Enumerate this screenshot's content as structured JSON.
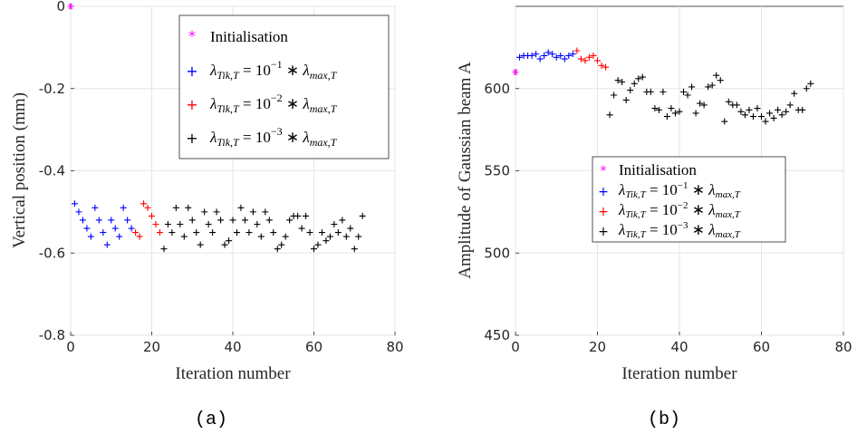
{
  "chart_data": [
    {
      "type": "scatter",
      "xlabel": "Iteration number",
      "ylabel": "Vertical position (mm)",
      "xlim": [
        0,
        80
      ],
      "ylim": [
        -0.8,
        0
      ],
      "xticks": [
        "0",
        "20",
        "40",
        "60",
        "80"
      ],
      "yticks": [
        "0",
        "-0.2",
        "-0.4",
        "-0.6",
        "-0.8"
      ],
      "caption": "(a)",
      "grid": true,
      "legend_position": "top-right",
      "series": [
        {
          "name": "Initialisation",
          "color": "#ff00ff",
          "marker": "asterisk",
          "points": [
            [
              0,
              0
            ]
          ]
        },
        {
          "name": "λTik,T = 10^-1 * λmax,T",
          "color": "#0000ff",
          "marker": "plus",
          "points": [
            [
              1,
              -0.48
            ],
            [
              2,
              -0.5
            ],
            [
              3,
              -0.52
            ],
            [
              4,
              -0.54
            ],
            [
              5,
              -0.56
            ],
            [
              6,
              -0.49
            ],
            [
              7,
              -0.52
            ],
            [
              8,
              -0.55
            ],
            [
              9,
              -0.58
            ],
            [
              10,
              -0.52
            ],
            [
              11,
              -0.54
            ],
            [
              12,
              -0.56
            ],
            [
              13,
              -0.49
            ],
            [
              14,
              -0.52
            ],
            [
              15,
              -0.54
            ]
          ]
        },
        {
          "name": "λTik,T = 10^-2 * λmax,T",
          "color": "#ff0000",
          "marker": "plus",
          "points": [
            [
              16,
              -0.55
            ],
            [
              17,
              -0.56
            ],
            [
              18,
              -0.48
            ],
            [
              19,
              -0.49
            ],
            [
              20,
              -0.51
            ],
            [
              21,
              -0.53
            ],
            [
              22,
              -0.55
            ]
          ]
        },
        {
          "name": "λTik,T = 10^-3 * λmax,T",
          "color": "#000000",
          "marker": "plus",
          "points": [
            [
              23,
              -0.59
            ],
            [
              24,
              -0.53
            ],
            [
              25,
              -0.55
            ],
            [
              26,
              -0.49
            ],
            [
              27,
              -0.53
            ],
            [
              28,
              -0.56
            ],
            [
              29,
              -0.49
            ],
            [
              30,
              -0.52
            ],
            [
              31,
              -0.55
            ],
            [
              32,
              -0.58
            ],
            [
              33,
              -0.5
            ],
            [
              34,
              -0.53
            ],
            [
              35,
              -0.55
            ],
            [
              36,
              -0.5
            ],
            [
              37,
              -0.52
            ],
            [
              38,
              -0.58
            ],
            [
              39,
              -0.57
            ],
            [
              40,
              -0.52
            ],
            [
              41,
              -0.55
            ],
            [
              42,
              -0.49
            ],
            [
              43,
              -0.52
            ],
            [
              44,
              -0.55
            ],
            [
              45,
              -0.5
            ],
            [
              46,
              -0.53
            ],
            [
              47,
              -0.56
            ],
            [
              48,
              -0.5
            ],
            [
              49,
              -0.52
            ],
            [
              50,
              -0.55
            ],
            [
              51,
              -0.59
            ],
            [
              52,
              -0.58
            ],
            [
              53,
              -0.56
            ],
            [
              54,
              -0.52
            ],
            [
              55,
              -0.51
            ],
            [
              56,
              -0.51
            ],
            [
              57,
              -0.54
            ],
            [
              58,
              -0.51
            ],
            [
              59,
              -0.55
            ],
            [
              60,
              -0.59
            ],
            [
              61,
              -0.58
            ],
            [
              62,
              -0.55
            ],
            [
              63,
              -0.57
            ],
            [
              64,
              -0.56
            ],
            [
              65,
              -0.53
            ],
            [
              66,
              -0.55
            ],
            [
              67,
              -0.52
            ],
            [
              68,
              -0.56
            ],
            [
              69,
              -0.54
            ],
            [
              70,
              -0.59
            ],
            [
              71,
              -0.56
            ],
            [
              72,
              -0.51
            ]
          ]
        }
      ]
    },
    {
      "type": "scatter",
      "xlabel": "Iteration number",
      "ylabel": "Amplitude of Gaussian beam A",
      "xlim": [
        0,
        80
      ],
      "ylim": [
        450,
        650
      ],
      "xticks": [
        "0",
        "20",
        "40",
        "60",
        "80"
      ],
      "yticks": [
        "450",
        "500",
        "550",
        "600"
      ],
      "caption": "(b)",
      "grid": true,
      "legend_position": "center",
      "series": [
        {
          "name": "Initialisation",
          "color": "#ff00ff",
          "marker": "asterisk",
          "points": [
            [
              0,
              610
            ]
          ]
        },
        {
          "name": "λTik,T = 10^-1 * λmax,T",
          "color": "#0000ff",
          "marker": "plus",
          "points": [
            [
              1,
              619
            ],
            [
              2,
              620
            ],
            [
              3,
              620
            ],
            [
              4,
              620
            ],
            [
              5,
              621
            ],
            [
              6,
              618
            ],
            [
              7,
              620
            ],
            [
              8,
              622
            ],
            [
              9,
              621
            ],
            [
              10,
              619
            ],
            [
              11,
              620
            ],
            [
              12,
              618
            ],
            [
              13,
              620
            ],
            [
              14,
              621
            ]
          ]
        },
        {
          "name": "λTik,T = 10^-2 * λmax,T",
          "color": "#ff0000",
          "marker": "plus",
          "points": [
            [
              15,
              623
            ],
            [
              16,
              618
            ],
            [
              17,
              617
            ],
            [
              18,
              619
            ],
            [
              19,
              620
            ],
            [
              20,
              617
            ],
            [
              21,
              614
            ],
            [
              22,
              613
            ]
          ]
        },
        {
          "name": "λTik,T = 10^-3 * λmax,T",
          "color": "#000000",
          "marker": "plus",
          "points": [
            [
              23,
              584
            ],
            [
              24,
              596
            ],
            [
              25,
              605
            ],
            [
              26,
              604
            ],
            [
              27,
              593
            ],
            [
              28,
              599
            ],
            [
              29,
              603
            ],
            [
              30,
              606
            ],
            [
              31,
              607
            ],
            [
              32,
              598
            ],
            [
              33,
              598
            ],
            [
              34,
              588
            ],
            [
              35,
              587
            ],
            [
              36,
              598
            ],
            [
              37,
              583
            ],
            [
              38,
              588
            ],
            [
              39,
              585
            ],
            [
              40,
              586
            ],
            [
              41,
              598
            ],
            [
              42,
              596
            ],
            [
              43,
              601
            ],
            [
              44,
              585
            ],
            [
              45,
              591
            ],
            [
              46,
              590
            ],
            [
              47,
              601
            ],
            [
              48,
              602
            ],
            [
              49,
              608
            ],
            [
              50,
              605
            ],
            [
              51,
              580
            ],
            [
              52,
              592
            ],
            [
              53,
              590
            ],
            [
              54,
              590
            ],
            [
              55,
              586
            ],
            [
              56,
              584
            ],
            [
              57,
              587
            ],
            [
              58,
              583
            ],
            [
              59,
              588
            ],
            [
              60,
              583
            ],
            [
              61,
              580
            ],
            [
              62,
              585
            ],
            [
              63,
              582
            ],
            [
              64,
              587
            ],
            [
              65,
              584
            ],
            [
              66,
              586
            ],
            [
              67,
              590
            ],
            [
              68,
              597
            ],
            [
              69,
              587
            ],
            [
              70,
              587
            ],
            [
              71,
              600
            ],
            [
              72,
              603
            ]
          ]
        }
      ]
    }
  ],
  "legend": {
    "init_label": "Initialisation",
    "lam_base": "λ",
    "sub_tik": "Tik,T",
    "equals": " = 10",
    "exp1": "−1",
    "exp2": "−2",
    "exp3": "−3",
    "times": " ∗ ",
    "sub_max": "max,T"
  }
}
